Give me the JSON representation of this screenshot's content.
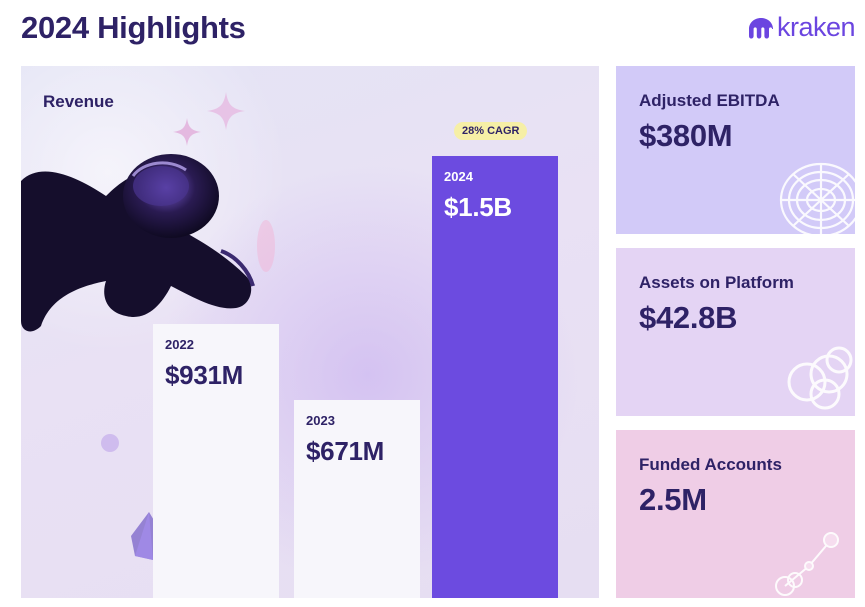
{
  "header": {
    "title": "2024 Highlights"
  },
  "brand": {
    "logo_text": "kraken",
    "color": "#6b45e0"
  },
  "chart_data": {
    "type": "bar",
    "title": "Revenue",
    "unit": "USD millions",
    "categories": [
      "2022",
      "2023",
      "2024"
    ],
    "values": [
      931,
      671,
      1500
    ],
    "data_labels": [
      "$931M",
      "$671M",
      "$1.5B"
    ],
    "ylim": [
      0,
      1800
    ],
    "annotation": "28% CAGR",
    "colors": [
      "#f7f6fb",
      "#f7f6fb",
      "#6c4be0"
    ],
    "label_colors": [
      "#2e2266",
      "#2e2266",
      "#ffffff"
    ]
  },
  "kpis": [
    {
      "label": "Adjusted EBITDA",
      "value": "$380M",
      "color": "#d2caf8"
    },
    {
      "label": "Assets on Platform",
      "value": "$42.8B",
      "color": "#e4d4f4"
    },
    {
      "label": "Funded Accounts",
      "value": "2.5M",
      "color": "#efcde6"
    }
  ]
}
